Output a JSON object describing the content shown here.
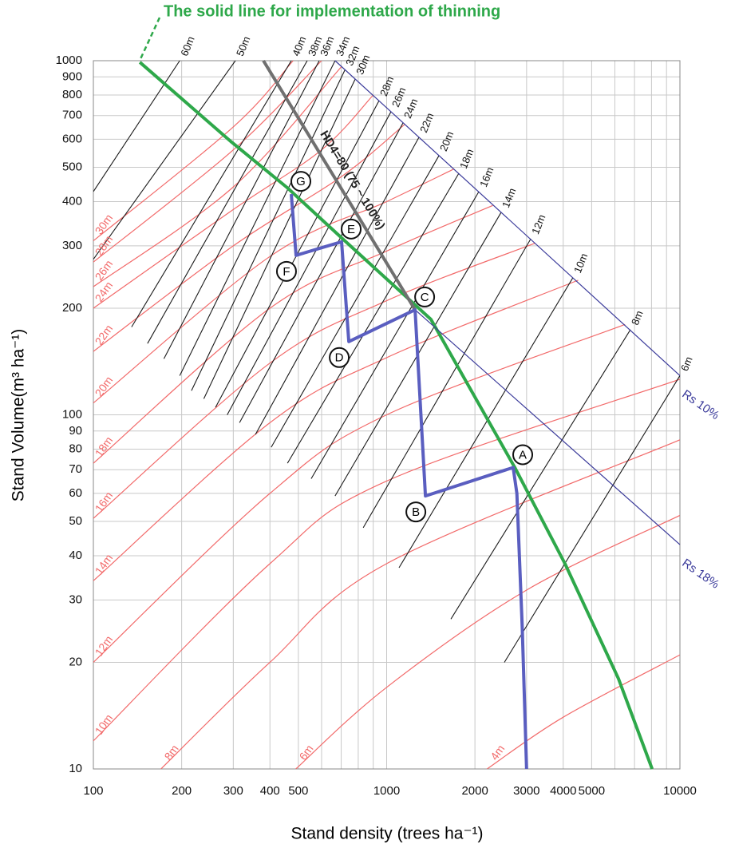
{
  "chart_data": {
    "type": "line",
    "annotation": "The solid line for implementation of thinning",
    "x_label": "Stand density (trees  ha⁻¹)",
    "y_label": "Stand Volume(m³ ha⁻¹)",
    "xlog": true,
    "ylog": true,
    "grid": true,
    "xlim": [
      100,
      10000
    ],
    "ylim": [
      10,
      1000
    ],
    "xticks": [
      100,
      200,
      300,
      400,
      500,
      1000,
      2000,
      3000,
      4000,
      5000,
      10000
    ],
    "xminor": [
      600,
      700,
      800,
      900,
      6000,
      7000,
      8000,
      9000
    ],
    "yticks": [
      10,
      20,
      30,
      40,
      50,
      60,
      70,
      80,
      90,
      100,
      200,
      300,
      400,
      500,
      600,
      700,
      800,
      900,
      1000
    ],
    "series": [
      {
        "color": "#2ea84a",
        "x": [
          144,
          296,
          458,
          711,
          1416,
          2735,
          4055,
          6170,
          8040
        ],
        "values": [
          990,
          589,
          438,
          313,
          186,
          71,
          38,
          18,
          10
        ]
      },
      {
        "name": "HD4=80 (75 ~ 100%)",
        "color": "#707070",
        "x": [
          380,
          1250
        ],
        "values": [
          1000,
          198
        ]
      },
      {
        "name": "Rs 10%",
        "color": "#3a3a9a",
        "x": [
          667,
          10000
        ],
        "values": [
          1000,
          129
        ]
      },
      {
        "name": "Rs 18%",
        "color": "#3a3a9a",
        "x": [
          1250,
          10000
        ],
        "values": [
          198,
          43
        ]
      },
      {
        "color": "#5a5ec0",
        "x": [
          3000,
          2900,
          2780,
          2700,
          1356,
          1250,
          743,
          702,
          491,
          473
        ],
        "values": [
          10,
          25,
          60,
          71,
          59,
          198,
          161,
          308,
          282,
          420
        ],
        "point_labels": [
          null,
          null,
          null,
          "A",
          "B",
          "C",
          "D",
          "E",
          "F",
          "G"
        ]
      }
    ],
    "red_lines": [
      {
        "name": "4m",
        "color": "#f26a6a",
        "x": [
          2200,
          4000,
          10000
        ],
        "values": [
          10,
          14,
          21
        ]
      },
      {
        "name": "6m",
        "color": "#f26a6a",
        "x": [
          490,
          1000,
          3000,
          10000
        ],
        "values": [
          10,
          17,
          32,
          52
        ]
      },
      {
        "name": "8m",
        "color": "#f26a6a",
        "x": [
          170,
          400,
          1000,
          10000
        ],
        "values": [
          10,
          20,
          38,
          85
        ]
      },
      {
        "name": "10m",
        "color": "#f26a6a",
        "x": [
          100,
          400,
          1000,
          10000
        ],
        "values": [
          12,
          38,
          65,
          126
        ]
      },
      {
        "name": "12m",
        "color": "#f26a6a",
        "x": [
          100,
          400,
          1000,
          6500
        ],
        "values": [
          20,
          60,
          100,
          180
        ]
      },
      {
        "name": "14m",
        "color": "#f26a6a",
        "x": [
          100,
          400,
          1000,
          4500
        ],
        "values": [
          34,
          95,
          145,
          240
        ]
      },
      {
        "name": "16m",
        "color": "#f26a6a",
        "x": [
          100,
          400,
          1000,
          3200
        ],
        "values": [
          51,
          140,
          210,
          305
        ]
      },
      {
        "name": "18m",
        "color": "#f26a6a",
        "x": [
          100,
          400,
          1000,
          2300
        ],
        "values": [
          73,
          200,
          290,
          390
        ]
      },
      {
        "name": "20m",
        "color": "#f26a6a",
        "x": [
          100,
          400,
          1000,
          1700
        ],
        "values": [
          108,
          280,
          400,
          495
        ]
      },
      {
        "name": "22m",
        "color": "#f26a6a",
        "x": [
          100,
          300,
          700,
          1150
        ],
        "values": [
          151,
          300,
          470,
          660
        ]
      },
      {
        "name": "24m",
        "color": "#f26a6a",
        "x": [
          100,
          300,
          600,
          900
        ],
        "values": [
          200,
          380,
          560,
          800
        ]
      },
      {
        "name": "26m",
        "color": "#f26a6a",
        "x": [
          100,
          300,
          700
        ],
        "values": [
          230,
          440,
          960
        ]
      },
      {
        "name": "28m",
        "color": "#f26a6a",
        "x": [
          100,
          300,
          600
        ],
        "values": [
          270,
          560,
          1000
        ]
      },
      {
        "name": "30m",
        "color": "#f26a6a",
        "x": [
          100,
          300,
          480
        ],
        "values": [
          310,
          650,
          1000
        ]
      }
    ],
    "black_lines": [
      {
        "name": "6m",
        "color": "#1a1a1a",
        "x": [
          2520,
          10000
        ],
        "values": [
          20,
          129
        ]
      },
      {
        "name": "8m",
        "color": "#1a1a1a",
        "x": [
          1656,
          6780
        ],
        "values": [
          26.5,
          174
        ]
      },
      {
        "name": "10m",
        "color": "#1a1a1a",
        "x": [
          1102,
          4317
        ],
        "values": [
          37,
          244
        ]
      },
      {
        "name": "12m",
        "color": "#1a1a1a",
        "x": [
          832,
          3100
        ],
        "values": [
          48,
          314
        ]
      },
      {
        "name": "14m",
        "color": "#1a1a1a",
        "x": [
          667,
          2457
        ],
        "values": [
          59,
          373
        ]
      },
      {
        "name": "16m",
        "color": "#1a1a1a",
        "x": [
          553,
          2063
        ],
        "values": [
          66,
          427
        ]
      },
      {
        "name": "18m",
        "color": "#1a1a1a",
        "x": [
          459,
          1763
        ],
        "values": [
          73,
          481
        ]
      },
      {
        "name": "20m",
        "color": "#1a1a1a",
        "x": [
          404,
          1507
        ],
        "values": [
          81,
          539
        ]
      },
      {
        "name": "22m",
        "color": "#1a1a1a",
        "x": [
          357,
          1289
        ],
        "values": [
          88,
          608
        ]
      },
      {
        "name": "24m",
        "color": "#1a1a1a",
        "x": [
          315,
          1137
        ],
        "values": [
          95,
          667
        ]
      },
      {
        "name": "26m",
        "color": "#1a1a1a",
        "x": [
          286,
          1035
        ],
        "values": [
          100,
          718
        ]
      },
      {
        "name": "28m",
        "color": "#1a1a1a",
        "x": [
          261,
          942
        ],
        "values": [
          105,
          771
        ]
      },
      {
        "name": "30m",
        "color": "#1a1a1a",
        "x": [
          238,
          781
        ],
        "values": [
          111,
          887
        ]
      },
      {
        "name": "32m",
        "color": "#1a1a1a",
        "x": [
          216,
          720
        ],
        "values": [
          117,
          940
        ]
      },
      {
        "name": "34m",
        "color": "#1a1a1a",
        "x": [
          197,
          667
        ],
        "values": [
          129,
          1000
        ]
      },
      {
        "name": "36m",
        "color": "#1a1a1a",
        "x": [
          174,
          589
        ],
        "values": [
          144,
          1000
        ]
      },
      {
        "name": "38m",
        "color": "#1a1a1a",
        "x": [
          153,
          536
        ],
        "values": [
          159,
          1000
        ]
      },
      {
        "name": "40m",
        "color": "#1a1a1a",
        "x": [
          135,
          473
        ],
        "values": [
          177,
          1000
        ]
      },
      {
        "name": "50m",
        "color": "#1a1a1a",
        "x": [
          100,
          305
        ],
        "values": [
          275,
          1000
        ]
      },
      {
        "name": "60m",
        "color": "#1a1a1a",
        "x": [
          100,
          197
        ],
        "values": [
          427,
          1000
        ]
      }
    ]
  }
}
